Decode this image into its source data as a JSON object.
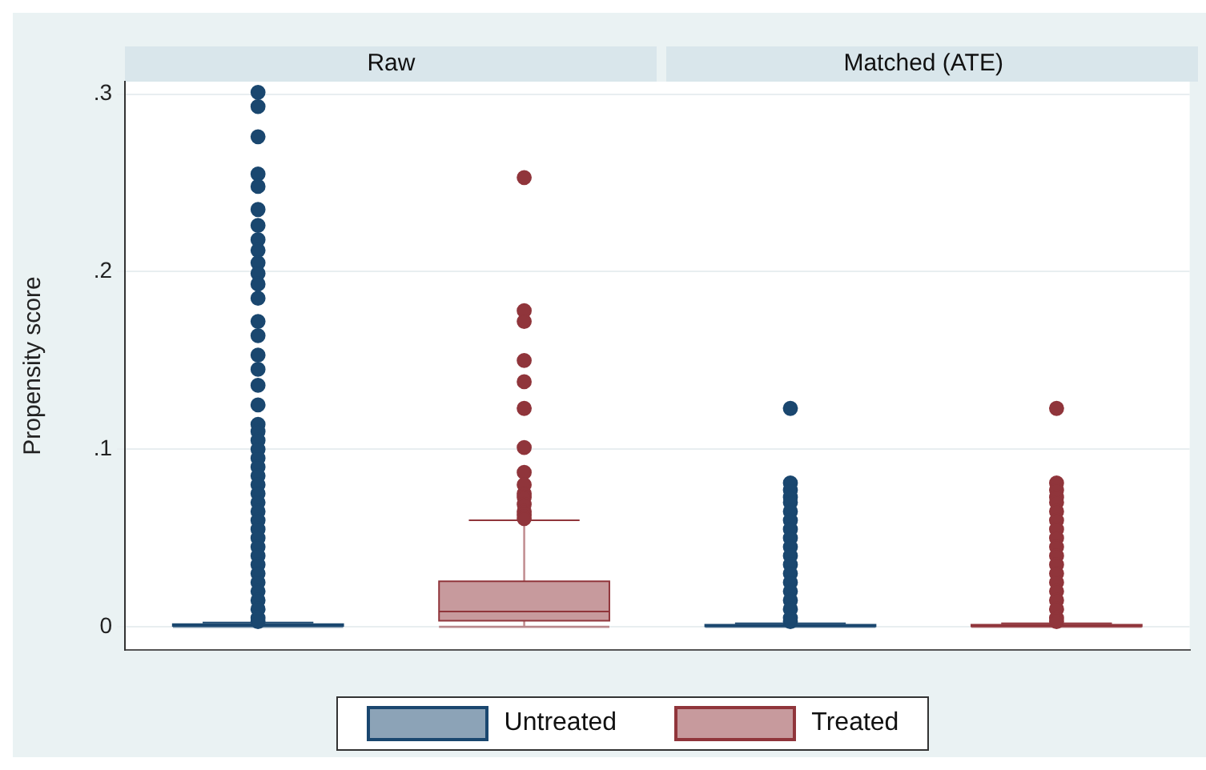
{
  "chart_data": {
    "type": "box",
    "ylabel": "Propensity score",
    "categories": [
      "Raw",
      "Matched (ATE)"
    ],
    "ylim": [
      -0.013,
      0.307
    ],
    "yticks": [
      {
        "value": 0,
        "label": "0"
      },
      {
        "value": 0.1,
        "label": ".1"
      },
      {
        "value": 0.2,
        "label": ".2"
      },
      {
        "value": 0.3,
        "label": ".3"
      }
    ],
    "grid": "y",
    "legend": "bottom",
    "series": [
      {
        "name": "Untreated",
        "color": "#1a476f",
        "boxes": [
          {
            "low": 0,
            "q1": 0.0005,
            "median": 0.001,
            "q3": 0.0015,
            "high": 0.0024,
            "outliers": [
              0.301,
              0.293,
              0.276,
              0.255,
              0.248,
              0.235,
              0.226,
              0.218,
              0.212,
              0.205,
              0.199,
              0.193,
              0.185,
              0.172,
              0.164,
              0.153,
              0.145,
              0.136,
              0.125,
              0.114,
              0.11,
              0.105,
              0.1,
              0.095,
              0.09,
              0.085,
              0.08,
              0.075,
              0.07,
              0.065,
              0.06,
              0.055,
              0.05,
              0.045,
              0.04,
              0.035,
              0.03,
              0.025,
              0.02,
              0.015,
              0.01,
              0.005,
              0.003
            ]
          },
          {
            "low": 0,
            "q1": 0.0003,
            "median": 0.0007,
            "q3": 0.0012,
            "high": 0.002,
            "outliers": [
              0.123,
              0.081,
              0.077,
              0.073,
              0.07,
              0.065,
              0.06,
              0.055,
              0.05,
              0.045,
              0.04,
              0.035,
              0.03,
              0.025,
              0.02,
              0.015,
              0.01,
              0.005,
              0.003
            ]
          }
        ]
      },
      {
        "name": "Treated",
        "color": "#90353b",
        "boxes": [
          {
            "low": 0,
            "q1": 0.0035,
            "median": 0.0086,
            "q3": 0.0257,
            "high": 0.06,
            "outliers": [
              0.253,
              0.178,
              0.172,
              0.15,
              0.138,
              0.123,
              0.101,
              0.087,
              0.08,
              0.075,
              0.073,
              0.069,
              0.065,
              0.063,
              0.061
            ]
          },
          {
            "low": 0,
            "q1": 0.0003,
            "median": 0.0007,
            "q3": 0.0012,
            "high": 0.002,
            "outliers": [
              0.123,
              0.081,
              0.077,
              0.073,
              0.07,
              0.065,
              0.06,
              0.055,
              0.05,
              0.045,
              0.04,
              0.035,
              0.03,
              0.025,
              0.02,
              0.015,
              0.01,
              0.005,
              0.003
            ]
          }
        ]
      }
    ]
  }
}
